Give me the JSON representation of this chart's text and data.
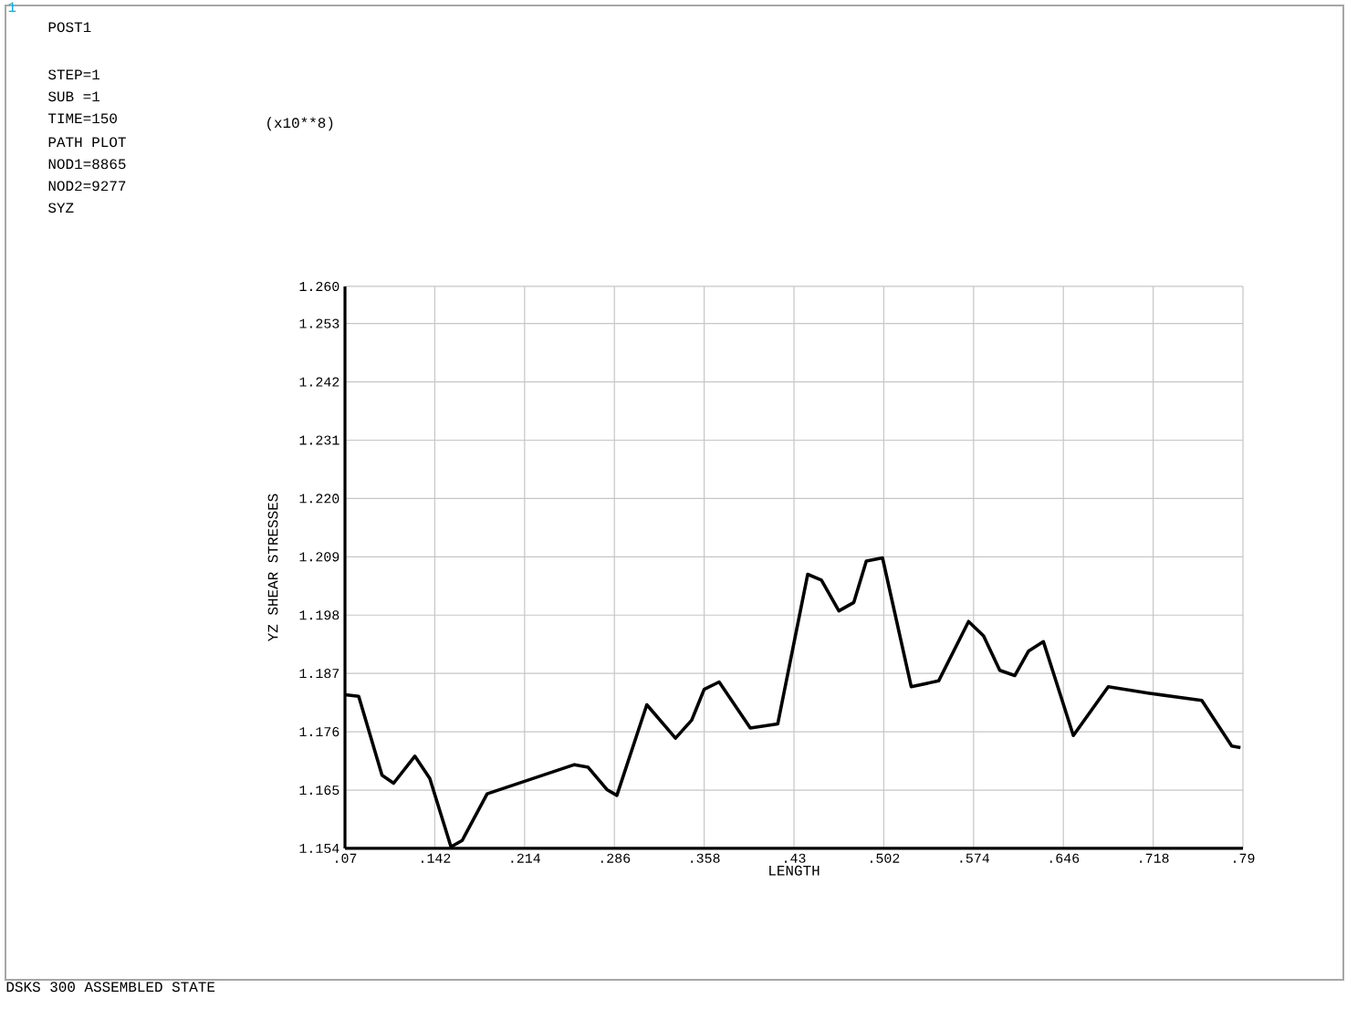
{
  "chart_data": {
    "type": "line",
    "xlabel": "LENGTH",
    "ylabel": "YZ SHEAR STRESSES",
    "annotations": [
      "1",
      "POST1",
      "STEP=1",
      "SUB =1",
      "TIME=150",
      "PATH PLOT",
      "NOD1=8865",
      "NOD2=9277",
      "SYZ",
      "(x10**8)",
      "DSKS 300 ASSEMBLED STATE"
    ],
    "x": [
      0.07,
      0.081,
      0.0997,
      0.109,
      0.126,
      0.138,
      0.155,
      0.164,
      0.184,
      0.254,
      0.265,
      0.28,
      0.288,
      0.312,
      0.335,
      0.348,
      0.358,
      0.37,
      0.395,
      0.417,
      0.441,
      0.452,
      0.466,
      0.478,
      0.488,
      0.501,
      0.524,
      0.546,
      0.57,
      0.582,
      0.595,
      0.607,
      0.618,
      0.63,
      0.654,
      0.682,
      0.714,
      0.757,
      0.781,
      0.788
    ],
    "values": [
      1.183,
      1.1827,
      1.1678,
      1.1663,
      1.1714,
      1.1672,
      1.1543,
      1.1555,
      1.1643,
      1.1698,
      1.1693,
      1.1651,
      1.164,
      1.1811,
      1.1748,
      1.1782,
      1.184,
      1.1854,
      1.1767,
      1.1775,
      1.2057,
      1.2046,
      1.1988,
      1.2004,
      1.2082,
      1.2088,
      1.1845,
      1.1856,
      1.1968,
      1.1941,
      1.1876,
      1.1866,
      1.1912,
      1.193,
      1.1753,
      1.1845,
      1.1833,
      1.1819,
      1.1733,
      1.173
    ],
    "color": "#000000",
    "xlim": [
      0.07,
      0.79
    ],
    "ylim": [
      1.154,
      1.26
    ],
    "xticks": [
      {
        "value": 0.07,
        "label": ".07"
      },
      {
        "value": 0.142,
        "label": ".142"
      },
      {
        "value": 0.214,
        "label": ".214"
      },
      {
        "value": 0.286,
        "label": ".286"
      },
      {
        "value": 0.358,
        "label": ".358"
      },
      {
        "value": 0.43,
        "label": ".43"
      },
      {
        "value": 0.502,
        "label": ".502"
      },
      {
        "value": 0.574,
        "label": ".574"
      },
      {
        "value": 0.646,
        "label": ".646"
      },
      {
        "value": 0.718,
        "label": ".718"
      },
      {
        "value": 0.79,
        "label": ".79"
      }
    ],
    "yticks": [
      {
        "value": 1.154,
        "label": "1.154"
      },
      {
        "value": 1.165,
        "label": "1.165"
      },
      {
        "value": 1.176,
        "label": "1.176"
      },
      {
        "value": 1.187,
        "label": "1.187"
      },
      {
        "value": 1.198,
        "label": "1.198"
      },
      {
        "value": 1.209,
        "label": "1.209"
      },
      {
        "value": 1.22,
        "label": "1.220"
      },
      {
        "value": 1.231,
        "label": "1.231"
      },
      {
        "value": 1.242,
        "label": "1.242"
      },
      {
        "value": 1.253,
        "label": "1.253"
      },
      {
        "value": 1.26,
        "label": "1.260"
      }
    ],
    "grid": true
  }
}
